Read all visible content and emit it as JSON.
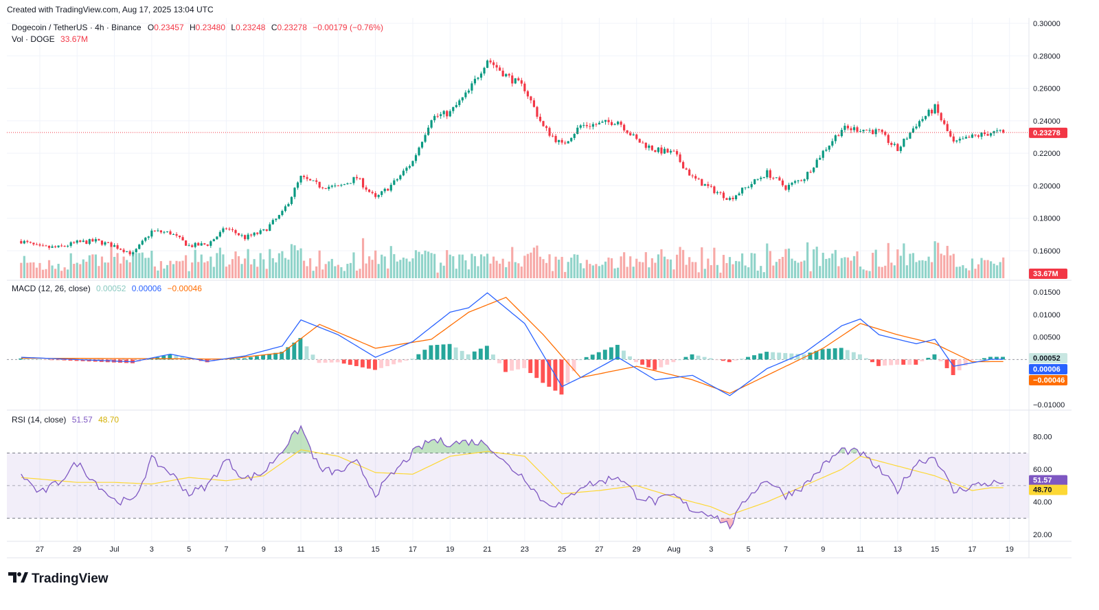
{
  "header": {
    "created_with": "Created with TradingView.com, Aug 17, 2025 13:04 UTC"
  },
  "symbol": {
    "name": "Dogecoin / TetherUS · 4h · Binance",
    "open_label": "O",
    "open": "0.23457",
    "high_label": "H",
    "high": "0.23480",
    "low_label": "L",
    "low": "0.23248",
    "close_label": "C",
    "close": "0.23278",
    "change": "−0.00179 (−0.76%)"
  },
  "volume_legend": {
    "label": "Vol · DOGE",
    "value": "33.67M"
  },
  "macd_legend": {
    "label": "MACD (12, 26, close)",
    "histogram": "0.00052",
    "macd": "0.00006",
    "signal": "−0.00046"
  },
  "rsi_legend": {
    "label": "RSI (14, close)",
    "rsi": "51.57",
    "ma": "48.70"
  },
  "price_axis": {
    "ticks": [
      "0.30000",
      "0.28000",
      "0.26000",
      "0.24000",
      "0.22000",
      "0.20000",
      "0.18000",
      "0.16000"
    ],
    "last_price_label": "0.23278",
    "volume_label": "33.67M"
  },
  "macd_axis": {
    "ticks": [
      "0.01500",
      "0.01000",
      "0.00500",
      "−0.01000"
    ],
    "labels": [
      "0.00052",
      "0.00006",
      "−0.00046"
    ]
  },
  "rsi_axis": {
    "ticks": [
      "80.00",
      "60.00",
      "40.00",
      "20.00"
    ],
    "labels": [
      "51.57",
      "48.70"
    ]
  },
  "time_axis": {
    "ticks": [
      "27",
      "29",
      "Jul",
      "3",
      "5",
      "7",
      "9",
      "11",
      "13",
      "15",
      "17",
      "19",
      "21",
      "23",
      "25",
      "27",
      "29",
      "Aug",
      "3",
      "5",
      "7",
      "9",
      "11",
      "13",
      "15",
      "17",
      "19"
    ]
  },
  "brand": {
    "logo_text": "TradingView"
  },
  "colors": {
    "up": "#089981",
    "down": "#f23645",
    "macd_line": "#2962ff",
    "signal_line": "#ff6d00",
    "rsi_line": "#7e57c2",
    "rsi_ma": "#fdd835",
    "vol_up": "#8fd3c9",
    "vol_down": "#f7a9a7"
  },
  "chart_data": {
    "type": "candlestick",
    "symbol": "DOGEUSDT",
    "interval": "4h",
    "ylim": [
      0.15,
      0.3
    ],
    "last_price": 0.23278,
    "price_anchors": [
      {
        "date": "Jun 26",
        "price": 0.166
      },
      {
        "date": "Jun 27",
        "price": 0.162
      },
      {
        "date": "Jun 28",
        "price": 0.162
      },
      {
        "date": "Jun 29",
        "price": 0.165
      },
      {
        "date": "Jun 30",
        "price": 0.166
      },
      {
        "date": "Jul 1",
        "price": 0.163
      },
      {
        "date": "Jul 2",
        "price": 0.158
      },
      {
        "date": "Jul 3",
        "price": 0.172
      },
      {
        "date": "Jul 4",
        "price": 0.171
      },
      {
        "date": "Jul 5",
        "price": 0.163
      },
      {
        "date": "Jul 6",
        "price": 0.164
      },
      {
        "date": "Jul 7",
        "price": 0.174
      },
      {
        "date": "Jul 8",
        "price": 0.168
      },
      {
        "date": "Jul 9",
        "price": 0.172
      },
      {
        "date": "Jul 10",
        "price": 0.183
      },
      {
        "date": "Jul 11",
        "price": 0.205
      },
      {
        "date": "Jul 12",
        "price": 0.2
      },
      {
        "date": "Jul 13",
        "price": 0.199
      },
      {
        "date": "Jul 14",
        "price": 0.205
      },
      {
        "date": "Jul 15",
        "price": 0.192
      },
      {
        "date": "Jul 16",
        "price": 0.202
      },
      {
        "date": "Jul 17",
        "price": 0.215
      },
      {
        "date": "Jul 18",
        "price": 0.242
      },
      {
        "date": "Jul 19",
        "price": 0.245
      },
      {
        "date": "Jul 20",
        "price": 0.258
      },
      {
        "date": "Jul 21",
        "price": 0.278
      },
      {
        "date": "Jul 22",
        "price": 0.268
      },
      {
        "date": "Jul 23",
        "price": 0.26
      },
      {
        "date": "Jul 24",
        "price": 0.236
      },
      {
        "date": "Jul 25",
        "price": 0.225
      },
      {
        "date": "Jul 26",
        "price": 0.237
      },
      {
        "date": "Jul 27",
        "price": 0.238
      },
      {
        "date": "Jul 28",
        "price": 0.24
      },
      {
        "date": "Jul 29",
        "price": 0.228
      },
      {
        "date": "Jul 30",
        "price": 0.222
      },
      {
        "date": "Jul 31",
        "price": 0.22
      },
      {
        "date": "Aug 1",
        "price": 0.205
      },
      {
        "date": "Aug 2",
        "price": 0.198
      },
      {
        "date": "Aug 3",
        "price": 0.192
      },
      {
        "date": "Aug 4",
        "price": 0.2
      },
      {
        "date": "Aug 5",
        "price": 0.208
      },
      {
        "date": "Aug 6",
        "price": 0.199
      },
      {
        "date": "Aug 7",
        "price": 0.205
      },
      {
        "date": "Aug 8",
        "price": 0.221
      },
      {
        "date": "Aug 9",
        "price": 0.235
      },
      {
        "date": "Aug 10",
        "price": 0.235
      },
      {
        "date": "Aug 11",
        "price": 0.233
      },
      {
        "date": "Aug 12",
        "price": 0.222
      },
      {
        "date": "Aug 13",
        "price": 0.238
      },
      {
        "date": "Aug 14",
        "price": 0.248
      },
      {
        "date": "Aug 15",
        "price": 0.226
      },
      {
        "date": "Aug 16",
        "price": 0.23
      },
      {
        "date": "Aug 17",
        "price": 0.2328
      }
    ],
    "macd": {
      "ylim": [
        -0.011,
        0.016
      ],
      "line_anchors": [
        {
          "date": "Jun 26",
          "value": 0.0005
        },
        {
          "date": "Jul 2",
          "value": -0.0005
        },
        {
          "date": "Jul 4",
          "value": 0.0012
        },
        {
          "date": "Jul 6",
          "value": -0.0004
        },
        {
          "date": "Jul 8",
          "value": 0.0008
        },
        {
          "date": "Jul 10",
          "value": 0.003
        },
        {
          "date": "Jul 11",
          "value": 0.0088
        },
        {
          "date": "Jul 13",
          "value": 0.0055
        },
        {
          "date": "Jul 15",
          "value": 0.0005
        },
        {
          "date": "Jul 17",
          "value": 0.004
        },
        {
          "date": "Jul 19",
          "value": 0.0105
        },
        {
          "date": "Jul 20",
          "value": 0.0115
        },
        {
          "date": "Jul 21",
          "value": 0.0148
        },
        {
          "date": "Jul 23",
          "value": 0.008
        },
        {
          "date": "Jul 25",
          "value": -0.006
        },
        {
          "date": "Jul 26",
          "value": -0.004
        },
        {
          "date": "Jul 28",
          "value": 0.0005
        },
        {
          "date": "Jul 30",
          "value": -0.0045
        },
        {
          "date": "Aug 1",
          "value": -0.0035
        },
        {
          "date": "Aug 3",
          "value": -0.008
        },
        {
          "date": "Aug 5",
          "value": -0.002
        },
        {
          "date": "Aug 7",
          "value": 0.0015
        },
        {
          "date": "Aug 9",
          "value": 0.0075
        },
        {
          "date": "Aug 10",
          "value": 0.009
        },
        {
          "date": "Aug 11",
          "value": 0.0055
        },
        {
          "date": "Aug 13",
          "value": 0.0035
        },
        {
          "date": "Aug 14",
          "value": 0.0045
        },
        {
          "date": "Aug 15",
          "value": -0.0015
        },
        {
          "date": "Aug 17",
          "value": 6e-05
        }
      ],
      "signal_anchors": [
        {
          "date": "Jun 26",
          "value": 0.0003
        },
        {
          "date": "Jul 3",
          "value": 0.0002
        },
        {
          "date": "Jul 7",
          "value": 0.0001
        },
        {
          "date": "Jul 10",
          "value": 0.0015
        },
        {
          "date": "Jul 12",
          "value": 0.0078
        },
        {
          "date": "Jul 15",
          "value": 0.0025
        },
        {
          "date": "Jul 18",
          "value": 0.0045
        },
        {
          "date": "Jul 20",
          "value": 0.0105
        },
        {
          "date": "Jul 22",
          "value": 0.0138
        },
        {
          "date": "Jul 24",
          "value": 0.0055
        },
        {
          "date": "Jul 26",
          "value": -0.004
        },
        {
          "date": "Jul 29",
          "value": -0.0015
        },
        {
          "date": "Aug 1",
          "value": -0.0045
        },
        {
          "date": "Aug 3",
          "value": -0.0075
        },
        {
          "date": "Aug 6",
          "value": -0.0015
        },
        {
          "date": "Aug 8",
          "value": 0.0025
        },
        {
          "date": "Aug 10",
          "value": 0.008
        },
        {
          "date": "Aug 12",
          "value": 0.0055
        },
        {
          "date": "Aug 14",
          "value": 0.0035
        },
        {
          "date": "Aug 16",
          "value": -0.0005
        },
        {
          "date": "Aug 17",
          "value": -0.00046
        }
      ],
      "last_histogram": 0.00052
    },
    "rsi": {
      "ylim": [
        15,
        90
      ],
      "bands": [
        30,
        50,
        70
      ],
      "line_anchors": [
        {
          "date": "Jun 26",
          "value": 57
        },
        {
          "date": "Jun 27",
          "value": 45
        },
        {
          "date": "Jun 28",
          "value": 52
        },
        {
          "date": "Jun 29",
          "value": 64
        },
        {
          "date": "Jun 30",
          "value": 52
        },
        {
          "date": "Jul 1",
          "value": 41
        },
        {
          "date": "Jul 2",
          "value": 40
        },
        {
          "date": "Jul 3",
          "value": 66
        },
        {
          "date": "Jul 4",
          "value": 58
        },
        {
          "date": "Jul 5",
          "value": 45
        },
        {
          "date": "Jul 6",
          "value": 50
        },
        {
          "date": "Jul 7",
          "value": 66
        },
        {
          "date": "Jul 8",
          "value": 54
        },
        {
          "date": "Jul 9",
          "value": 58
        },
        {
          "date": "Jul 10",
          "value": 72
        },
        {
          "date": "Jul 11",
          "value": 86
        },
        {
          "date": "Jul 12",
          "value": 60
        },
        {
          "date": "Jul 13",
          "value": 58
        },
        {
          "date": "Jul 14",
          "value": 64
        },
        {
          "date": "Jul 15",
          "value": 45
        },
        {
          "date": "Jul 16",
          "value": 58
        },
        {
          "date": "Jul 17",
          "value": 70
        },
        {
          "date": "Jul 18",
          "value": 78
        },
        {
          "date": "Jul 19",
          "value": 76
        },
        {
          "date": "Jul 20",
          "value": 77
        },
        {
          "date": "Jul 21",
          "value": 76
        },
        {
          "date": "Jul 22",
          "value": 63
        },
        {
          "date": "Jul 23",
          "value": 55
        },
        {
          "date": "Jul 24",
          "value": 40
        },
        {
          "date": "Jul 25",
          "value": 38
        },
        {
          "date": "Jul 26",
          "value": 50
        },
        {
          "date": "Jul 27",
          "value": 52
        },
        {
          "date": "Jul 28",
          "value": 56
        },
        {
          "date": "Jul 29",
          "value": 44
        },
        {
          "date": "Jul 30",
          "value": 40
        },
        {
          "date": "Jul 31",
          "value": 44
        },
        {
          "date": "Aug 1",
          "value": 35
        },
        {
          "date": "Aug 2",
          "value": 33
        },
        {
          "date": "Aug 3",
          "value": 25
        },
        {
          "date": "Aug 4",
          "value": 44
        },
        {
          "date": "Aug 5",
          "value": 54
        },
        {
          "date": "Aug 6",
          "value": 44
        },
        {
          "date": "Aug 7",
          "value": 50
        },
        {
          "date": "Aug 8",
          "value": 62
        },
        {
          "date": "Aug 9",
          "value": 72
        },
        {
          "date": "Aug 10",
          "value": 70
        },
        {
          "date": "Aug 11",
          "value": 60
        },
        {
          "date": "Aug 12",
          "value": 47
        },
        {
          "date": "Aug 13",
          "value": 64
        },
        {
          "date": "Aug 14",
          "value": 68
        },
        {
          "date": "Aug 15",
          "value": 46
        },
        {
          "date": "Aug 16",
          "value": 50
        },
        {
          "date": "Aug 17",
          "value": 51.57
        }
      ],
      "ma_anchors": [
        {
          "date": "Jun 26",
          "value": 55
        },
        {
          "date": "Jun 29",
          "value": 52
        },
        {
          "date": "Jul 1",
          "value": 52
        },
        {
          "date": "Jul 3",
          "value": 51
        },
        {
          "date": "Jul 5",
          "value": 55
        },
        {
          "date": "Jul 7",
          "value": 53
        },
        {
          "date": "Jul 9",
          "value": 56
        },
        {
          "date": "Jul 11",
          "value": 72
        },
        {
          "date": "Jul 13",
          "value": 68
        },
        {
          "date": "Jul 15",
          "value": 58
        },
        {
          "date": "Jul 17",
          "value": 57
        },
        {
          "date": "Jul 19",
          "value": 68
        },
        {
          "date": "Jul 21",
          "value": 71
        },
        {
          "date": "Jul 23",
          "value": 68
        },
        {
          "date": "Jul 25",
          "value": 45
        },
        {
          "date": "Jul 27",
          "value": 47
        },
        {
          "date": "Jul 29",
          "value": 50
        },
        {
          "date": "Jul 31",
          "value": 43
        },
        {
          "date": "Aug 2",
          "value": 37
        },
        {
          "date": "Aug 3",
          "value": 32
        },
        {
          "date": "Aug 5",
          "value": 40
        },
        {
          "date": "Aug 7",
          "value": 50
        },
        {
          "date": "Aug 9",
          "value": 60
        },
        {
          "date": "Aug 10",
          "value": 68
        },
        {
          "date": "Aug 12",
          "value": 62
        },
        {
          "date": "Aug 14",
          "value": 56
        },
        {
          "date": "Aug 16",
          "value": 47
        },
        {
          "date": "Aug 17",
          "value": 48.7
        }
      ]
    }
  }
}
